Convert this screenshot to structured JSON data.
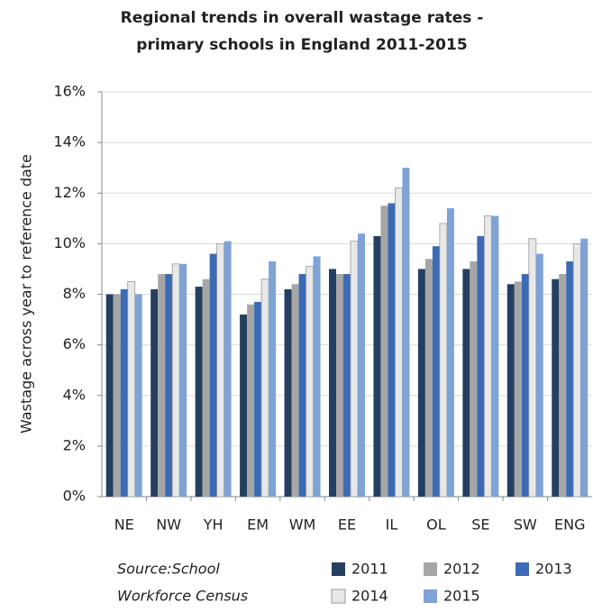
{
  "chart_data": {
    "type": "bar",
    "title": [
      "Regional trends in overall wastage rates -",
      "primary schools in England 2011-2015"
    ],
    "y_label": "Wastage across year to reference date",
    "source": [
      "Source:School",
      "Workforce Census"
    ],
    "categories": [
      "NE",
      "NW",
      "YH",
      "EM",
      "WM",
      "EE",
      "IL",
      "OL",
      "SE",
      "SW",
      "ENG"
    ],
    "series": [
      {
        "name": "2011",
        "color": "#243f60",
        "values": [
          8.0,
          8.2,
          8.3,
          7.2,
          8.2,
          9.0,
          10.3,
          9.0,
          9.0,
          8.4,
          8.6
        ]
      },
      {
        "name": "2012",
        "color": "#a6a6a6",
        "values": [
          8.0,
          8.8,
          8.6,
          7.6,
          8.4,
          8.8,
          11.5,
          9.4,
          9.3,
          8.5,
          8.8
        ]
      },
      {
        "name": "2013",
        "color": "#3c6bb5",
        "values": [
          8.2,
          8.8,
          9.6,
          7.7,
          8.8,
          8.8,
          11.6,
          9.9,
          10.3,
          8.8,
          9.3
        ]
      },
      {
        "name": "2014",
        "color": "#e8e8e8",
        "values": [
          8.5,
          9.2,
          10.0,
          8.6,
          9.1,
          10.1,
          12.2,
          10.8,
          11.1,
          10.2,
          10.0
        ]
      },
      {
        "name": "2015",
        "color": "#7fa3d6",
        "values": [
          8.0,
          9.2,
          10.1,
          9.3,
          9.5,
          10.4,
          13.0,
          11.4,
          11.1,
          9.6,
          10.2
        ]
      }
    ],
    "ylim": [
      0,
      16
    ],
    "yticks": [
      {
        "value": 0,
        "label": "0%"
      },
      {
        "value": 2,
        "label": "2%"
      },
      {
        "value": 4,
        "label": "4%"
      },
      {
        "value": 6,
        "label": "6%"
      },
      {
        "value": 8,
        "label": "8%"
      },
      {
        "value": 10,
        "label": "10%"
      },
      {
        "value": 12,
        "label": "12%"
      },
      {
        "value": 14,
        "label": "14%"
      },
      {
        "value": 16,
        "label": "16%"
      }
    ],
    "grid": true
  }
}
